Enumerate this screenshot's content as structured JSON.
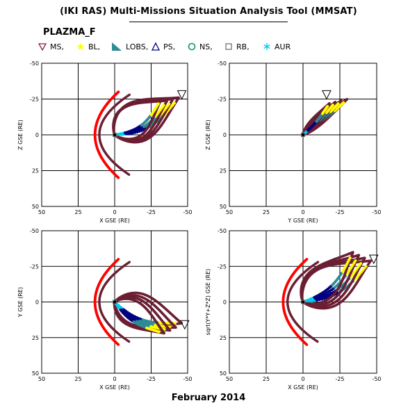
{
  "header": {
    "title": "(IKI RAS) Multi-Missions Situation Analysis Tool (MMSAT)",
    "mission": "PLAZMA_F"
  },
  "legend": [
    {
      "label": "MS,",
      "symbol": "triangle-down",
      "color": "#8b1a3a"
    },
    {
      "label": "BL,",
      "symbol": "star",
      "color": "#ffff00"
    },
    {
      "label": "LOBS,",
      "symbol": "wedge",
      "color": "#2e8a94"
    },
    {
      "label": "PS,",
      "symbol": "triangle-up",
      "color": "#000080"
    },
    {
      "label": "NS,",
      "symbol": "circle",
      "color": "#009966"
    },
    {
      "label": "RB,",
      "symbol": "square",
      "color": "#666666"
    },
    {
      "label": "AUR",
      "symbol": "asterisk",
      "color": "#00ccee"
    }
  ],
  "footer": {
    "date": "February 2014"
  },
  "chart_data": [
    {
      "type": "scatter",
      "panel": "top-left",
      "xlabel": "X GSE (RE)",
      "ylabel": "Z GSE (RE)",
      "xlim": [
        50,
        -50
      ],
      "ylim": [
        -50,
        50
      ],
      "xticks": [
        50,
        25,
        0,
        -25,
        -50
      ],
      "yticks": [
        50,
        25,
        0,
        -25,
        -50
      ],
      "bow_shock": {
        "nose": 13.5,
        "flare": 14
      },
      "magnetopause": {
        "nose": 10.5,
        "flare": 9.5
      },
      "orbit_color": "#6b1f33",
      "orbits": [
        {
          "apogee": [
            -44,
            -26
          ],
          "width": 16
        },
        {
          "apogee": [
            -40,
            -25
          ],
          "width": 15
        },
        {
          "apogee": [
            -36,
            -24
          ],
          "width": 14
        },
        {
          "apogee": [
            -32,
            -25
          ],
          "width": 13
        }
      ],
      "apogee_marker": [
        -46,
        -28
      ],
      "grid": true
    },
    {
      "type": "scatter",
      "panel": "top-right",
      "xlabel": "Y GSE (RE)",
      "ylabel": "Z GSE (RE)",
      "xlim": [
        50,
        -50
      ],
      "ylim": [
        -50,
        50
      ],
      "xticks": [
        50,
        25,
        0,
        -25,
        -50
      ],
      "yticks": [
        50,
        25,
        0,
        -25,
        -50
      ],
      "orbit_color": "#6b1f33",
      "orbits": [
        {
          "apogee": [
            -30,
            -25
          ],
          "width": 2.5
        },
        {
          "apogee": [
            -26,
            -24
          ],
          "width": 2.5
        },
        {
          "apogee": [
            -22,
            -23
          ],
          "width": 2.5
        },
        {
          "apogee": [
            -18,
            -22
          ],
          "width": 2.5
        }
      ],
      "apogee_marker": [
        -16,
        -28
      ],
      "grid": true
    },
    {
      "type": "scatter",
      "panel": "bottom-left",
      "xlabel": "X GSE (RE)",
      "ylabel": "Y GSE (RE)",
      "xlim": [
        50,
        -50
      ],
      "ylim": [
        -50,
        50
      ],
      "xticks": [
        50,
        25,
        0,
        -25,
        -50
      ],
      "yticks": [
        -50,
        -25,
        0,
        25,
        50
      ],
      "bow_shock": {
        "nose": 13.5,
        "flare": 14
      },
      "magnetopause": {
        "nose": 10.5,
        "flare": 9.5
      },
      "orbit_color": "#6b1f33",
      "orbits": [
        {
          "apogee": [
            -46,
            15
          ],
          "width": 13
        },
        {
          "apogee": [
            -42,
            18
          ],
          "width": 12
        },
        {
          "apogee": [
            -38,
            20
          ],
          "width": 11
        },
        {
          "apogee": [
            -34,
            22
          ],
          "width": 10
        }
      ],
      "apogee_marker": [
        -48,
        16
      ],
      "grid": true
    },
    {
      "type": "scatter",
      "panel": "bottom-right",
      "xlabel": "X GSE (RE)",
      "ylabel": "sqrt(Y*Y+Z*Z) GSE (RE)",
      "xlim": [
        50,
        -50
      ],
      "ylim": [
        -50,
        50
      ],
      "xticks": [
        50,
        25,
        0,
        -25,
        -50
      ],
      "yticks": [
        -50,
        -25,
        0,
        25,
        50
      ],
      "bow_shock": {
        "nose": 13.5,
        "flare": 14
      },
      "magnetopause": {
        "nose": 10.5,
        "flare": 9.5
      },
      "orbit_color": "#6b1f33",
      "orbits": [
        {
          "apogee": [
            -46,
            -29
          ],
          "width": 16
        },
        {
          "apogee": [
            -42,
            -31
          ],
          "width": 15
        },
        {
          "apogee": [
            -38,
            -33
          ],
          "width": 14
        },
        {
          "apogee": [
            -34,
            -35
          ],
          "width": 13
        }
      ],
      "apogee_marker": [
        -48,
        -30
      ],
      "grid": true
    }
  ]
}
